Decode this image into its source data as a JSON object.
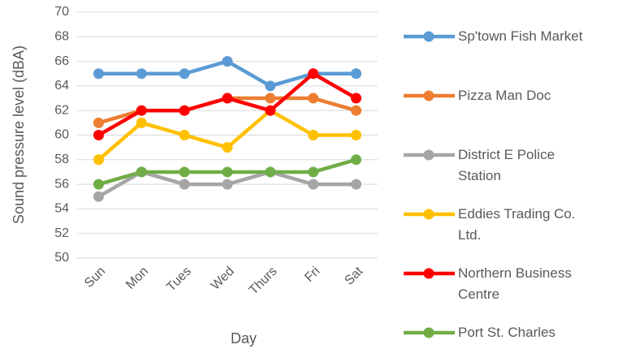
{
  "chart_data": {
    "type": "line",
    "x_label": "Day",
    "y_label": "Sound pressure level (dBA)",
    "categories": [
      "Sun",
      "Mon",
      "Tues",
      "Wed",
      "Thurs",
      "Fri",
      "Sat"
    ],
    "ylim": [
      50,
      70
    ],
    "yticks": [
      50,
      52,
      54,
      56,
      58,
      60,
      62,
      64,
      66,
      68,
      70
    ],
    "grid": true,
    "legend": "right",
    "series": [
      {
        "name": "Sp'town Fish Market",
        "color": "#5b9bd5",
        "values": [
          65,
          65,
          65,
          66,
          64,
          65,
          65
        ]
      },
      {
        "name": "Pizza Man Doc",
        "color": "#ed7d31",
        "values": [
          61,
          62,
          62,
          63,
          63,
          63,
          62
        ]
      },
      {
        "name": "District E Police Station",
        "color": "#a5a5a5",
        "values": [
          55,
          57,
          56,
          56,
          57,
          56,
          56
        ]
      },
      {
        "name": "Eddies Trading Co. Ltd.",
        "color": "#ffc000",
        "values": [
          58,
          61,
          60,
          59,
          62,
          60,
          60
        ]
      },
      {
        "name": "Northern Business Centre",
        "color": "#ff0000",
        "values": [
          60,
          62,
          62,
          63,
          62,
          65,
          63
        ]
      },
      {
        "name": "Port St. Charles",
        "color": "#70ad47",
        "values": [
          56,
          57,
          57,
          57,
          57,
          57,
          58
        ]
      }
    ]
  }
}
